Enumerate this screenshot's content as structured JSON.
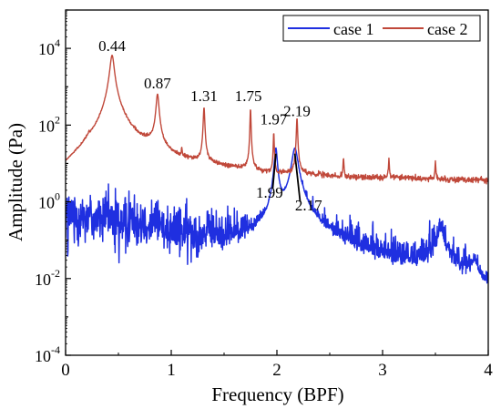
{
  "chart_data": {
    "type": "line",
    "title": "",
    "xlabel": "Frequency (BPF)",
    "ylabel": "Amplitude (Pa)",
    "xlim": [
      0,
      4
    ],
    "ylim": [
      0.0001,
      100000
    ],
    "y_scale": "log",
    "x_ticks": [
      {
        "value": 0,
        "label": "0"
      },
      {
        "value": 1,
        "label": "1"
      },
      {
        "value": 2,
        "label": "2"
      },
      {
        "value": 3,
        "label": "3"
      },
      {
        "value": 4,
        "label": "4"
      }
    ],
    "y_ticks": [
      {
        "exp": -4,
        "base": "10",
        "sup": "-4"
      },
      {
        "exp": -2,
        "base": "10",
        "sup": "-2"
      },
      {
        "exp": 0,
        "base": "10",
        "sup": "0"
      },
      {
        "exp": 2,
        "base": "10",
        "sup": "2"
      },
      {
        "exp": 4,
        "base": "10",
        "sup": "4"
      }
    ],
    "legend": {
      "position": "top-right"
    },
    "series": [
      {
        "name": "case 1",
        "color": "#1f2fe0",
        "baseline_points": [
          [
            0.0,
            0.5
          ],
          [
            0.1,
            0.4
          ],
          [
            0.2,
            0.45
          ],
          [
            0.3,
            0.35
          ],
          [
            0.4,
            0.4
          ],
          [
            0.5,
            0.3
          ],
          [
            0.6,
            0.35
          ],
          [
            0.7,
            0.35
          ],
          [
            0.8,
            0.3
          ],
          [
            0.9,
            0.25
          ],
          [
            1.0,
            0.2
          ],
          [
            1.1,
            0.15
          ],
          [
            1.2,
            0.15
          ],
          [
            1.3,
            0.12
          ],
          [
            1.4,
            0.12
          ],
          [
            1.5,
            0.1
          ],
          [
            1.6,
            0.1
          ],
          [
            1.7,
            0.1
          ],
          [
            1.8,
            0.09
          ],
          [
            1.9,
            0.07
          ],
          [
            2.0,
            0.06
          ],
          [
            2.1,
            0.06
          ],
          [
            2.2,
            0.15
          ],
          [
            2.3,
            0.12
          ],
          [
            2.4,
            0.08
          ],
          [
            2.5,
            0.07
          ],
          [
            2.6,
            0.06
          ],
          [
            2.7,
            0.05
          ],
          [
            2.8,
            0.04
          ],
          [
            2.9,
            0.035
          ],
          [
            3.0,
            0.03
          ],
          [
            3.1,
            0.025
          ],
          [
            3.2,
            0.02
          ],
          [
            3.3,
            0.02
          ],
          [
            3.4,
            0.03
          ],
          [
            3.5,
            0.06
          ],
          [
            3.6,
            0.05
          ],
          [
            3.7,
            0.02
          ],
          [
            3.8,
            0.012
          ],
          [
            3.9,
            0.004
          ],
          [
            4.0,
            0.002
          ]
        ],
        "peaks": [
          {
            "x": 1.99,
            "amp": 25,
            "width": 0.012
          },
          {
            "x": 2.17,
            "amp": 25,
            "width": 0.025
          },
          {
            "x": 3.55,
            "amp": 0.15,
            "width": 0.03
          },
          {
            "x": 3.87,
            "amp": 0.02,
            "width": 0.03
          }
        ],
        "noise_amplitude_decades": 0.35,
        "min": 0.0003
      },
      {
        "name": "case 2",
        "color": "#c0483a",
        "baseline_points": [
          [
            0.0,
            1.0
          ],
          [
            0.05,
            2.5
          ],
          [
            0.1,
            5.0
          ],
          [
            0.15,
            8.0
          ],
          [
            0.2,
            15.0
          ],
          [
            0.3,
            30.0
          ],
          [
            0.35,
            50.0
          ],
          [
            0.4,
            100.0
          ],
          [
            0.5,
            120.0
          ],
          [
            0.6,
            50.0
          ],
          [
            0.7,
            30.0
          ],
          [
            0.8,
            25.0
          ],
          [
            0.9,
            15.0
          ],
          [
            1.0,
            12.0
          ],
          [
            1.1,
            10.0
          ],
          [
            1.2,
            9.0
          ],
          [
            1.3,
            8.0
          ],
          [
            1.5,
            7.0
          ],
          [
            1.7,
            6.0
          ],
          [
            1.9,
            5.0
          ],
          [
            2.0,
            4.5
          ],
          [
            2.2,
            5.0
          ],
          [
            2.4,
            4.5
          ],
          [
            2.6,
            4.0
          ],
          [
            2.8,
            4.0
          ],
          [
            3.0,
            4.0
          ],
          [
            3.2,
            4.0
          ],
          [
            3.4,
            3.8
          ],
          [
            3.6,
            3.7
          ],
          [
            3.8,
            3.6
          ],
          [
            4.0,
            3.5
          ]
        ],
        "peaks": [
          {
            "x": 0.44,
            "amp": 6500,
            "width": 0.018
          },
          {
            "x": 0.87,
            "amp": 620,
            "width": 0.012
          },
          {
            "x": 1.31,
            "amp": 280,
            "width": 0.006
          },
          {
            "x": 1.75,
            "amp": 270,
            "width": 0.004
          },
          {
            "x": 1.97,
            "amp": 60,
            "width": 0.004
          },
          {
            "x": 2.19,
            "amp": 150,
            "width": 0.005
          },
          {
            "x": 2.63,
            "amp": 10,
            "width": 0.004
          },
          {
            "x": 3.06,
            "amp": 9,
            "width": 0.004
          },
          {
            "x": 3.5,
            "amp": 7,
            "width": 0.004
          },
          {
            "x": 0.22,
            "amp": 10,
            "width": 0.005
          },
          {
            "x": 1.1,
            "amp": 10,
            "width": 0.004
          }
        ],
        "noise_amplitude_decades": 0.04,
        "min": 0.5
      }
    ],
    "annotations": [
      {
        "text": "0.44",
        "x": 0.44,
        "y": 8500
      },
      {
        "text": "0.87",
        "x": 0.87,
        "y": 900
      },
      {
        "text": "1.31",
        "x": 1.31,
        "y": 420
      },
      {
        "text": "1.75",
        "x": 1.73,
        "y": 420
      },
      {
        "text": "1.97",
        "x": 1.97,
        "y": 105
      },
      {
        "text": "2.19",
        "x": 2.19,
        "y": 170
      },
      {
        "text": "1.99",
        "x": 1.93,
        "y": 1.3
      },
      {
        "text": "2.17",
        "x": 2.3,
        "y": 0.6
      }
    ],
    "pointers": [
      {
        "x1": 1.99,
        "y1": 18,
        "x2": 1.96,
        "y2": 2.2
      },
      {
        "x1": 2.17,
        "y1": 18,
        "x2": 2.22,
        "y2": 1.0
      }
    ]
  }
}
